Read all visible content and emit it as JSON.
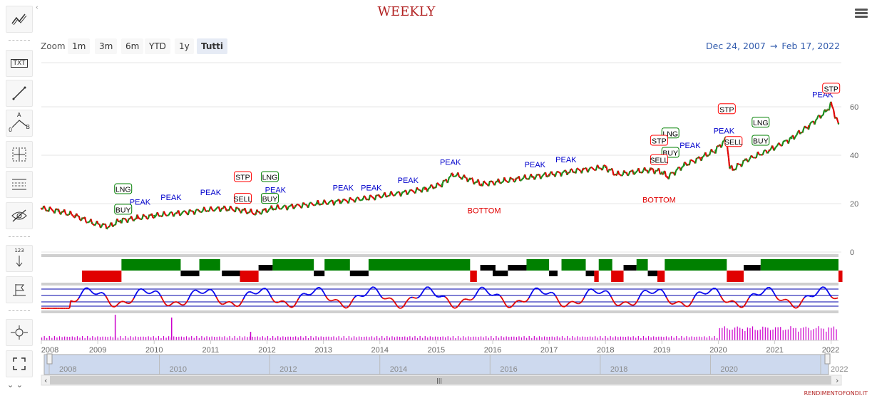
{
  "chart_data": {
    "type": "line",
    "title": "WEEKLY",
    "x_tick_labels": [
      "2008",
      "2009",
      "2010",
      "2011",
      "2012",
      "2013",
      "2014",
      "2015",
      "2016",
      "2017",
      "2018",
      "2019",
      "2020",
      "2021",
      "2022"
    ],
    "y_tick_labels": [
      "0",
      "20",
      "40",
      "60"
    ],
    "ylim": [
      0,
      70
    ],
    "xlim": [
      2008.0,
      2022.13
    ],
    "grid": true,
    "series": [
      {
        "x": [
          2008.0,
          2008.3,
          2008.6,
          2008.9,
          2009.2,
          2009.4,
          2009.7,
          2010.0,
          2010.4,
          2010.8,
          2011.2,
          2011.5,
          2011.8,
          2012.1,
          2012.5,
          2012.9,
          2013.3,
          2013.7,
          2014.0,
          2014.4,
          2014.8,
          2015.1,
          2015.3,
          2015.6,
          2015.8,
          2016.1,
          2016.4,
          2016.7,
          2017.0,
          2017.3,
          2017.6,
          2018.0,
          2018.2,
          2018.5,
          2018.8,
          2019.0,
          2019.1,
          2019.4,
          2019.7,
          2019.95,
          2020.15,
          2020.2,
          2020.25,
          2020.5,
          2020.9,
          2021.3,
          2021.6,
          2021.9,
          2022.0,
          2022.13
        ],
        "values": [
          18,
          17,
          15,
          12,
          10.5,
          13,
          14,
          15,
          16,
          17,
          18,
          17.5,
          16,
          18,
          19,
          20,
          21,
          22,
          23,
          24.5,
          26,
          28,
          32,
          30,
          28,
          29,
          30,
          31,
          32,
          33,
          34,
          35,
          32,
          33,
          34,
          33,
          31,
          36,
          39,
          42,
          47,
          35,
          34,
          38,
          42,
          47,
          52,
          58,
          61,
          53
        ]
      }
    ],
    "annotations": {
      "peak": [
        "PEAK",
        "PEAK",
        "PEAK",
        "PEAK",
        "PEAK",
        "PEAK",
        "PEAK",
        "PEAK",
        "PEAK",
        "PEAK",
        "PEAK",
        "PEAK",
        "PEAK"
      ],
      "bottom": [
        "BOTTOM",
        "BOTTOM"
      ],
      "badges_green": [
        "LNG",
        "BUY",
        "LNG",
        "BUY",
        "LNG",
        "BUY",
        "LNG",
        "BUY"
      ],
      "badges_red": [
        "STP",
        "SELL",
        "STP",
        "SELL",
        "SELL",
        "STP",
        "STP"
      ]
    },
    "navigator_labels": [
      "2008",
      "2010",
      "2012",
      "2014",
      "2016",
      "2018",
      "2020",
      "2022"
    ],
    "colors": {
      "up": "#1a8a1a",
      "down": "#e00000",
      "peak": "#0000cc",
      "bottom": "#e00000",
      "buy_green": "#008000",
      "sell_red": "#ff0000",
      "ind_blue": "#0000ee",
      "volume": "#cc00cc"
    }
  },
  "zoom": {
    "label": "Zoom",
    "buttons": [
      "1m",
      "3m",
      "6m",
      "YTD",
      "1y",
      "Tutti"
    ]
  },
  "date_range": {
    "from": "Dec 24, 2007",
    "arrow": "→",
    "to": "Feb 17, 2022"
  },
  "watermark": "RENDIMENTOFONDI.IT",
  "toolbar": {
    "txt": "TXT",
    "abc_a": "A",
    "abc_o": "0",
    "abc_b": "B",
    "num": "123"
  }
}
